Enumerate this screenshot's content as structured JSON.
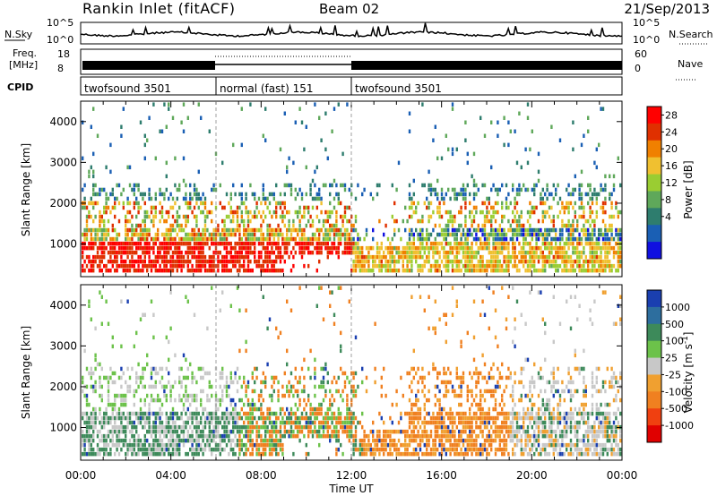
{
  "header": {
    "station": "Rankin Inlet (fitACF)",
    "beam": "Beam 02",
    "date": "21/Sep/2013"
  },
  "noise_panel": {
    "left_label": "N.Sky",
    "right_label": "N.Search",
    "left_ticks": [
      "10^5",
      "10^0"
    ],
    "right_ticks": [
      "10^5",
      "10^0"
    ]
  },
  "freq_panel": {
    "left_label_1": "Freq.",
    "left_label_2": "[MHz]",
    "right_label": "Nave",
    "left_ticks": [
      "18",
      "8"
    ],
    "right_ticks": [
      "60",
      "0"
    ]
  },
  "cpid_panel": {
    "label": "CPID",
    "segments": [
      {
        "label": "twofsound 3501",
        "start_hour": 0,
        "end_hour": 6
      },
      {
        "label": "normal (fast) 151",
        "start_hour": 6,
        "end_hour": 12
      },
      {
        "label": "twofsound 3501",
        "start_hour": 12,
        "end_hour": 24
      }
    ]
  },
  "chart_data": [
    {
      "type": "heatmap",
      "name": "power",
      "ylabel": "Slant Range [km]",
      "yticks": [
        1000,
        2000,
        3000,
        4000
      ],
      "ylim": [
        200,
        4500
      ],
      "colorbar_label": "Power [dB]",
      "colorbar_ticks": [
        "4",
        "8",
        "12",
        "16",
        "20",
        "24",
        "28"
      ],
      "colorbar_colors": [
        "#1010e0",
        "#1a5fb4",
        "#2e7d6e",
        "#5fa85a",
        "#9acd32",
        "#f0c030",
        "#f08000",
        "#e03000",
        "#ff0000"
      ]
    },
    {
      "type": "heatmap",
      "name": "velocity",
      "ylabel": "Slant Range [km]",
      "yticks": [
        1000,
        2000,
        3000,
        4000
      ],
      "ylim": [
        200,
        4500
      ],
      "xlabel": "Time UT",
      "xticks": [
        "00:00",
        "04:00",
        "08:00",
        "12:00",
        "16:00",
        "20:00",
        "00:00"
      ],
      "colorbar_label": "Velocity [m s^-1]",
      "colorbar_ticks": [
        "1000",
        "500",
        "100",
        "25",
        "-25",
        "-100",
        "-500",
        "-1000"
      ],
      "colorbar_colors": [
        "#1a3fb0",
        "#2d6e9e",
        "#3d8a5a",
        "#6cc24a",
        "#c8c8c8",
        "#f0a030",
        "#f08020",
        "#f04010",
        "#e00000"
      ]
    }
  ]
}
